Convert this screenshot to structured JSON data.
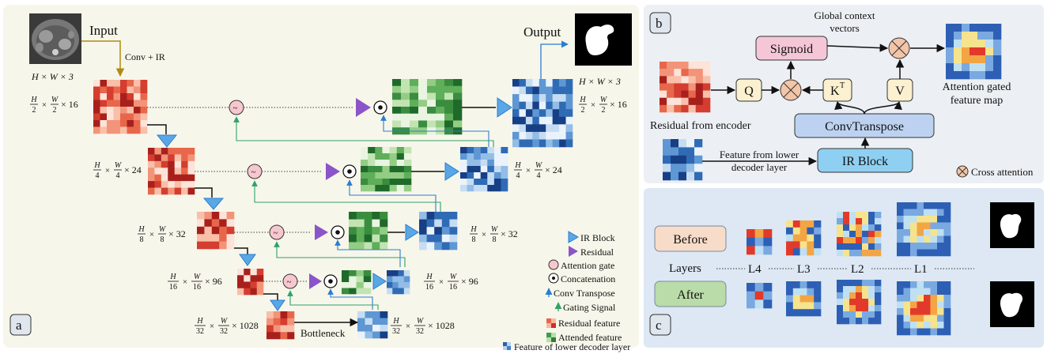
{
  "panel_a": {
    "tag": "a",
    "input_label": "Input",
    "output_label": "Output",
    "conv_label": "Conv + IR",
    "input_dims": "H × W × 3",
    "output_dims": "H × W × 3",
    "bottleneck_label": "Bottleneck",
    "dims": [
      {
        "num_h": "H",
        "den_h": "2",
        "num_w": "W",
        "den_w": "2",
        "ch": "× 16"
      },
      {
        "num_h": "H",
        "den_h": "4",
        "num_w": "W",
        "den_w": "4",
        "ch": "× 24"
      },
      {
        "num_h": "H",
        "den_h": "8",
        "num_w": "W",
        "den_w": "8",
        "ch": "× 32"
      },
      {
        "num_h": "H",
        "den_h": "16",
        "num_w": "W",
        "den_w": "16",
        "ch": "× 96"
      },
      {
        "num_h": "H",
        "den_h": "32",
        "num_w": "W",
        "den_w": "32",
        "ch": "× 1028"
      }
    ],
    "legend": [
      {
        "icon": "triangle-blue-icon",
        "label": "IR Block"
      },
      {
        "icon": "triangle-purple-icon",
        "label": "Residual"
      },
      {
        "icon": "attention-gate-icon",
        "label": "Attention gate"
      },
      {
        "icon": "concatenation-icon",
        "label": "Concatenation"
      },
      {
        "icon": "arrow-blue-icon",
        "label": "Conv Transpose"
      },
      {
        "icon": "arrow-green-icon",
        "label": "Gating Signal"
      },
      {
        "icon": "red-grid-icon",
        "label": "Residual feature"
      },
      {
        "icon": "green-grid-icon",
        "label": "Attended feature"
      },
      {
        "icon": "blue-grid-icon",
        "label": "Feature of lower decoder layer"
      }
    ]
  },
  "panel_b": {
    "tag": "b",
    "global_context": [
      "Global context",
      "vectors"
    ],
    "sigmoid": "Sigmoid",
    "q": "Q",
    "k": "K",
    "k_sup": "T",
    "v": "V",
    "conv_transpose": "ConvTranspose",
    "ir_block": "IR Block",
    "residual_encoder": "Residual from encoder",
    "feature_lower": [
      "Feature from lower",
      "decoder layer"
    ],
    "attention_map": [
      "Attention gated",
      "feature map"
    ],
    "cross_attention": "Cross attention"
  },
  "panel_c": {
    "tag": "c",
    "before": "Before",
    "after": "After",
    "layers": "Layers",
    "levels": [
      "L4",
      "L3",
      "L2",
      "L1"
    ]
  },
  "colors": {
    "panel_a_bg": "#f7f6ea",
    "panel_b_bg": "#ecf0f4",
    "panel_c_bg": "#dde8f4",
    "ir_blue": "#5aa7e6",
    "residual_purple": "#8b55c9",
    "sigmoid_fill": "#f4c6d6",
    "qkv_fill": "#fbf0cf",
    "convT_fill": "#bdd2f0",
    "irblock_fill": "#8fd0f2",
    "before_fill": "#f7dcc9",
    "after_fill": "#b9dca8"
  }
}
